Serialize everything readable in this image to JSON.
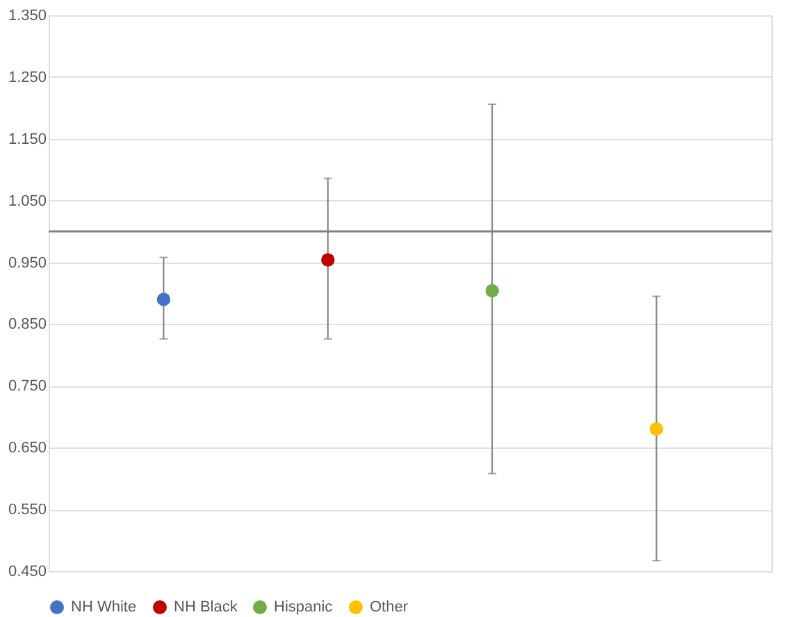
{
  "chart_data": {
    "type": "scatter",
    "categories": [
      null,
      null,
      null,
      null
    ],
    "series": [
      {
        "name": "NH White",
        "color": "#4472c4",
        "values": [
          0.89,
          null,
          null,
          null
        ],
        "errors": [
          [
            0.826,
            0.958
          ],
          null,
          null,
          null
        ]
      },
      {
        "name": "NH Black",
        "color": "#c00000",
        "values": [
          null,
          0.954,
          null,
          null
        ],
        "errors": [
          null,
          [
            0.826,
            1.086
          ],
          null,
          null
        ]
      },
      {
        "name": "Hispanic",
        "color": "#70ad47",
        "values": [
          null,
          null,
          0.904,
          null
        ],
        "errors": [
          null,
          null,
          [
            0.608,
            1.206
          ],
          null
        ]
      },
      {
        "name": "Other",
        "color": "#ffc000",
        "values": [
          null,
          null,
          null,
          0.68
        ],
        "errors": [
          null,
          null,
          null,
          [
            0.467,
            0.895
          ]
        ]
      }
    ],
    "ylim": [
      0.45,
      1.35
    ],
    "yticks": [
      {
        "value": 0.45,
        "label": "0.450"
      },
      {
        "value": 0.55,
        "label": "0.550"
      },
      {
        "value": 0.65,
        "label": "0.650"
      },
      {
        "value": 0.75,
        "label": "0.750"
      },
      {
        "value": 0.85,
        "label": "0.850"
      },
      {
        "value": 0.95,
        "label": "0.950"
      },
      {
        "value": 1.05,
        "label": "1.050"
      },
      {
        "value": 1.15,
        "label": "1.150"
      },
      {
        "value": 1.25,
        "label": "1.250"
      },
      {
        "value": 1.35,
        "label": "1.350"
      }
    ],
    "ref_lines": [
      {
        "axis": "y",
        "value": 1.0,
        "label": null,
        "color": "#808080"
      }
    ],
    "grid": "y",
    "legend": "bottom",
    "marker": "circle"
  }
}
